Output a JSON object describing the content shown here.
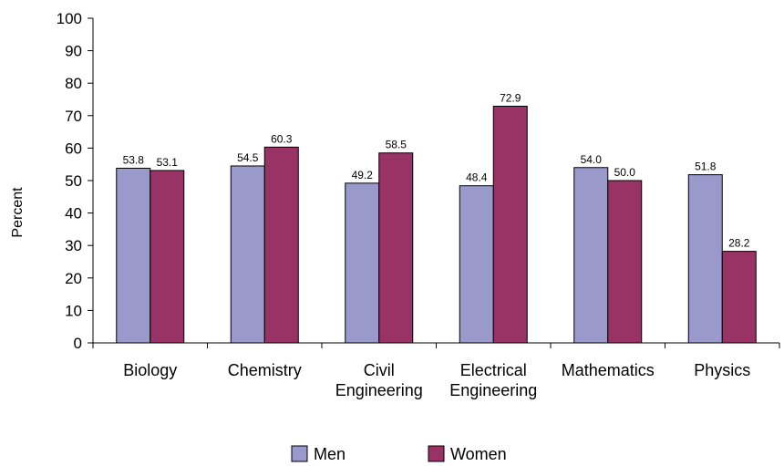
{
  "chart_data": {
    "type": "bar",
    "title": "",
    "xlabel": "",
    "ylabel": "Percent",
    "ylim": [
      0,
      100
    ],
    "yticks": [
      0,
      10,
      20,
      30,
      40,
      50,
      60,
      70,
      80,
      90,
      100
    ],
    "categories": [
      "Biology",
      "Chemistry",
      "Civil Engineering",
      "Electrical Engineering",
      "Mathematics",
      "Physics"
    ],
    "category_lines": [
      [
        "Biology"
      ],
      [
        "Chemistry"
      ],
      [
        "Civil",
        "Engineering"
      ],
      [
        "Electrical",
        "Engineering"
      ],
      [
        "Mathematics"
      ],
      [
        "Physics"
      ]
    ],
    "series": [
      {
        "name": "Men",
        "color": "#9999cc",
        "values": [
          53.8,
          54.5,
          49.2,
          48.4,
          54.0,
          51.8
        ],
        "labels": [
          "53.8",
          "54.5",
          "49.2",
          "48.4",
          "54.0",
          "51.8"
        ]
      },
      {
        "name": "Women",
        "color": "#993366",
        "values": [
          53.1,
          60.3,
          58.5,
          72.9,
          50.0,
          28.2
        ],
        "labels": [
          "53.1",
          "60.3",
          "58.5",
          "72.9",
          "50.0",
          "28.2"
        ]
      }
    ],
    "grid": false,
    "legend": "bottom"
  }
}
